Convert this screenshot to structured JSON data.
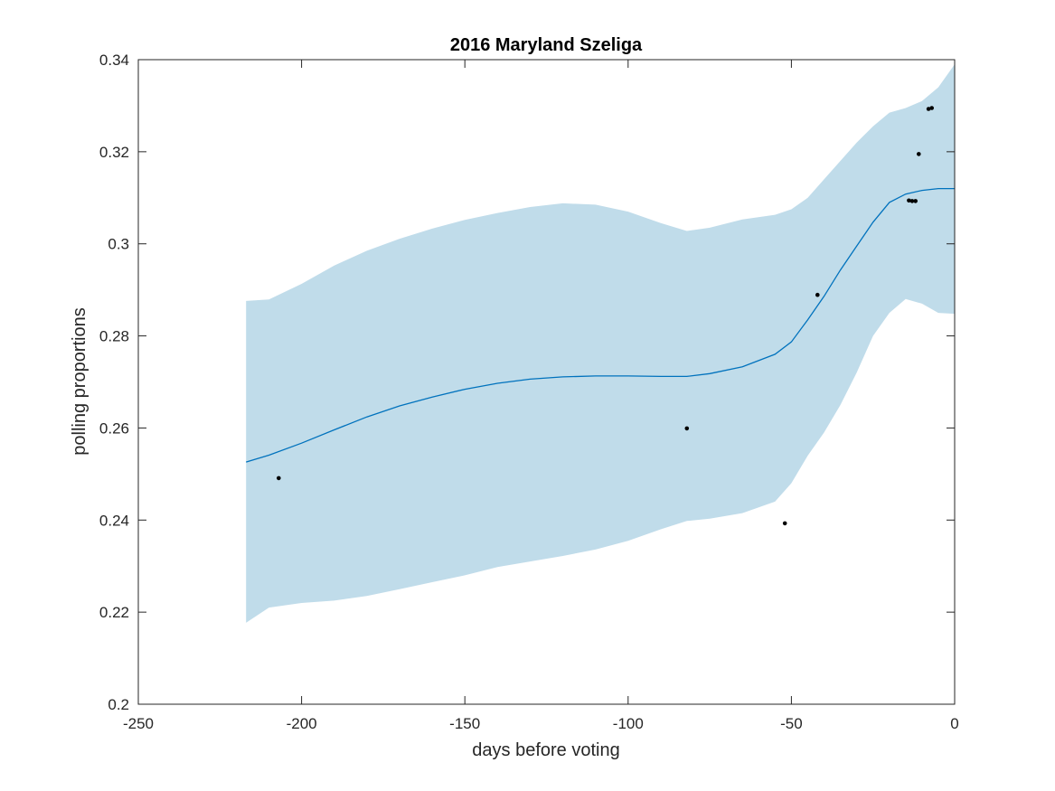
{
  "chart_data": {
    "type": "line",
    "title": "2016 Maryland Szeliga",
    "xlabel": "days before voting",
    "ylabel": "polling proportions",
    "xlim": [
      -250,
      0
    ],
    "ylim": [
      0.2,
      0.34
    ],
    "x_ticks": [
      -250,
      -200,
      -150,
      -100,
      -50,
      0
    ],
    "x_tick_labels": [
      "-250",
      "-200",
      "-150",
      "-100",
      "-50",
      "0"
    ],
    "y_ticks": [
      0.2,
      0.22,
      0.24,
      0.26,
      0.28,
      0.3,
      0.32,
      0.34
    ],
    "y_tick_labels": [
      "0.2",
      "0.22",
      "0.24",
      "0.26",
      "0.28",
      "0.3",
      "0.32",
      "0.34"
    ],
    "grid": false,
    "colors": {
      "band": "#c0dcea",
      "line": "#0072bd",
      "points": "#000000",
      "axes": "#262626"
    },
    "series": [
      {
        "type": "band",
        "x": [
          -217,
          -210,
          -200,
          -190,
          -180,
          -170,
          -160,
          -150,
          -140,
          -130,
          -120,
          -110,
          -100,
          -90,
          -82,
          -75,
          -65,
          -55,
          -50,
          -45,
          -40,
          -35,
          -30,
          -25,
          -20,
          -15,
          -10,
          -5,
          0
        ],
        "upper": [
          0.2876,
          0.2879,
          0.2913,
          0.2953,
          0.2985,
          0.3011,
          0.3033,
          0.3052,
          0.3067,
          0.308,
          0.3088,
          0.3085,
          0.307,
          0.3045,
          0.3028,
          0.3035,
          0.3053,
          0.3063,
          0.3075,
          0.31,
          0.314,
          0.318,
          0.322,
          0.3255,
          0.3285,
          0.3295,
          0.331,
          0.334,
          0.339
        ],
        "lower": [
          0.2177,
          0.221,
          0.222,
          0.2225,
          0.2235,
          0.225,
          0.2265,
          0.228,
          0.2298,
          0.231,
          0.2322,
          0.2336,
          0.2355,
          0.238,
          0.2398,
          0.2403,
          0.2415,
          0.244,
          0.248,
          0.254,
          0.259,
          0.265,
          0.272,
          0.28,
          0.285,
          0.288,
          0.287,
          0.285,
          0.2848
        ]
      },
      {
        "type": "line",
        "x": [
          -217,
          -210,
          -200,
          -190,
          -180,
          -170,
          -160,
          -150,
          -140,
          -130,
          -120,
          -110,
          -100,
          -90,
          -82,
          -75,
          -65,
          -55,
          -50,
          -45,
          -40,
          -35,
          -30,
          -25,
          -20,
          -15,
          -10,
          -5,
          -2,
          0
        ],
        "y": [
          0.2526,
          0.2541,
          0.2567,
          0.2596,
          0.2624,
          0.2648,
          0.2667,
          0.2684,
          0.2697,
          0.2706,
          0.2711,
          0.2713,
          0.2713,
          0.2712,
          0.2712,
          0.2718,
          0.2733,
          0.276,
          0.2787,
          0.2835,
          0.2886,
          0.2943,
          0.2995,
          0.3047,
          0.309,
          0.3108,
          0.3116,
          0.312,
          0.312,
          0.312
        ]
      },
      {
        "type": "scatter",
        "x": [
          -207,
          -82,
          -52,
          -42,
          -14,
          -13,
          -12,
          -11,
          -8,
          -7
        ],
        "y": [
          0.2491,
          0.2599,
          0.2393,
          0.2889,
          0.3094,
          0.3093,
          0.3093,
          0.3195,
          0.3293,
          0.3295
        ]
      }
    ]
  }
}
